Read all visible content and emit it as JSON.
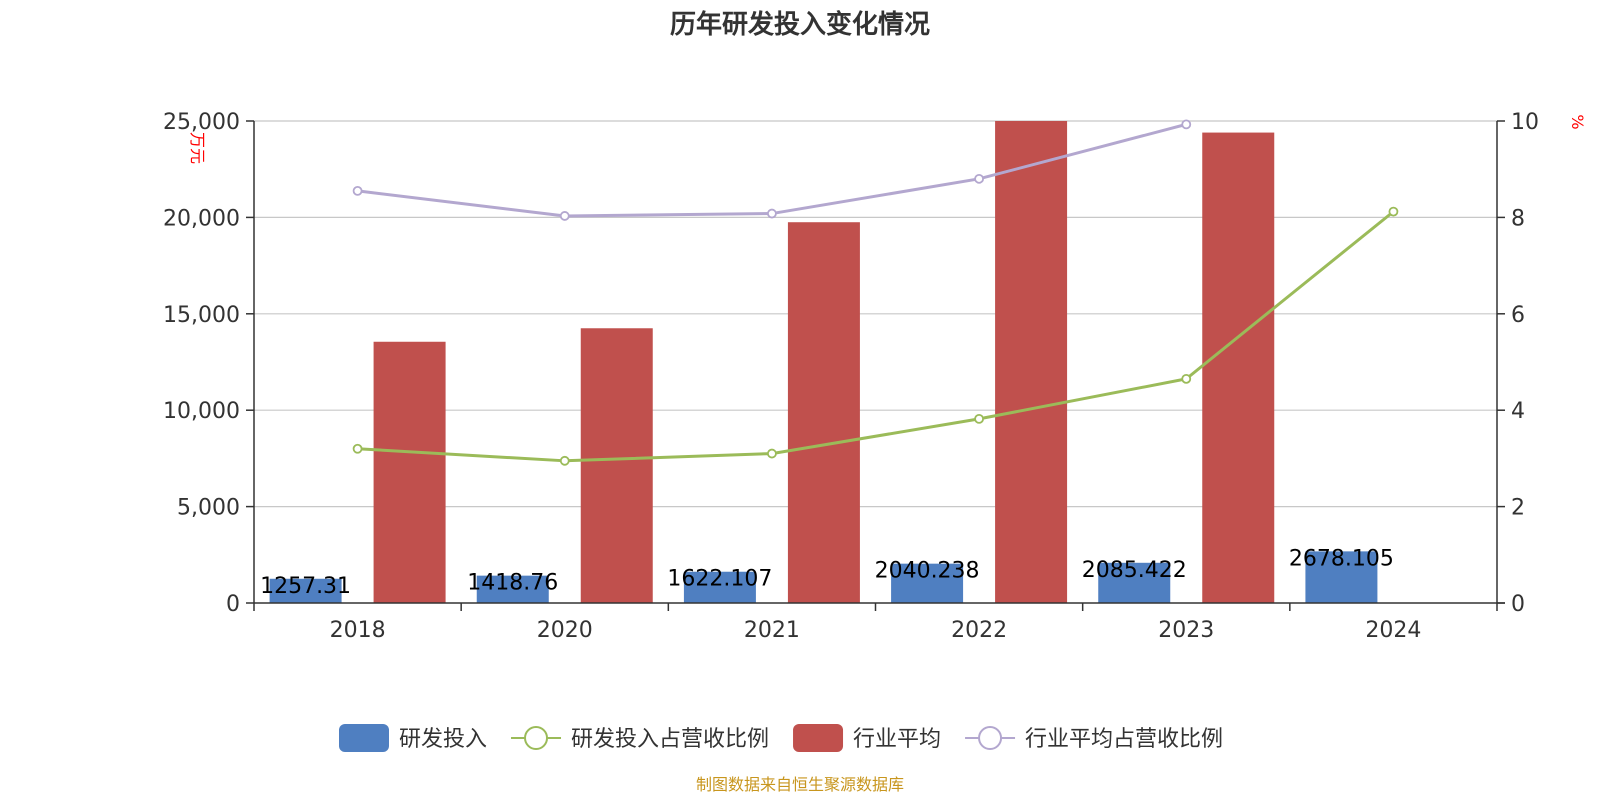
{
  "chart_data": {
    "type": "bar",
    "title": "历年研发投入变化情况",
    "categories": [
      "2018",
      "2020",
      "2021",
      "2022",
      "2023",
      "2024"
    ],
    "left_axis": {
      "unit": "万元",
      "min": 0,
      "max": 25000,
      "ticks": [
        "0",
        "5,000",
        "10,000",
        "15,000",
        "20,000",
        "25,000"
      ],
      "tick_values": [
        0,
        5000,
        10000,
        15000,
        20000,
        25000
      ]
    },
    "right_axis": {
      "unit": "%",
      "min": 0,
      "max": 10,
      "ticks": [
        "0",
        "2",
        "4",
        "6",
        "8",
        "10"
      ],
      "tick_values": [
        0,
        2,
        4,
        6,
        8,
        10
      ]
    },
    "grid": true,
    "legend_position": "bottom",
    "series": [
      {
        "name": "研发投入",
        "kind": "bar",
        "axis": "left",
        "color": "#4f7fc1",
        "values": [
          1257.31,
          1418.76,
          1622.107,
          2040.238,
          2085.422,
          2678.105
        ],
        "labels": [
          "1257.31",
          "1418.76",
          "1622.107",
          "2040.238",
          "2085.422",
          "2678.105"
        ]
      },
      {
        "name": "研发投入占营收比例",
        "kind": "line",
        "axis": "right",
        "color": "#9bbb59",
        "values": [
          3.2,
          2.95,
          3.1,
          3.82,
          4.65,
          8.12
        ]
      },
      {
        "name": "行业平均",
        "kind": "bar",
        "axis": "left",
        "color": "#c0504d",
        "values": [
          13550,
          14250,
          19750,
          25100,
          24400,
          null
        ]
      },
      {
        "name": "行业平均占营收比例",
        "kind": "line",
        "axis": "right",
        "color": "#b3a7cf",
        "values": [
          8.55,
          8.03,
          8.08,
          8.8,
          9.93,
          null
        ]
      }
    ],
    "source": "制图数据来自恒生聚源数据库"
  }
}
